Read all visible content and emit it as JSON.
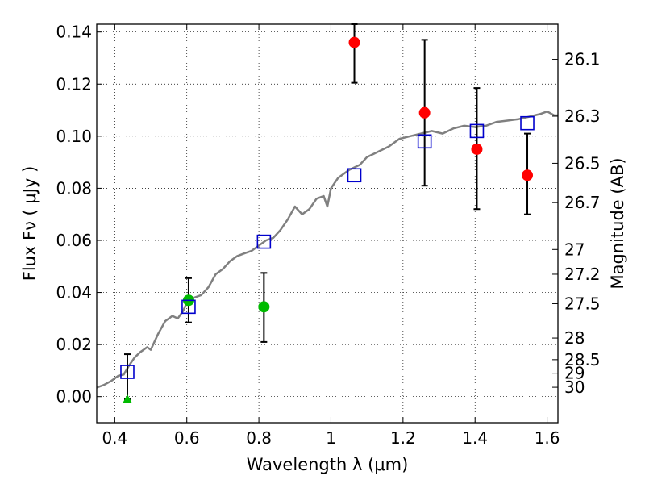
{
  "chart_data": {
    "type": "scatter",
    "xlabel": "Wavelength  λ (μm)",
    "ylabel": "Flux  Fν  ( μJy )",
    "ylabel_right": "Magnitude (AB)",
    "xlim": [
      0.35,
      1.63
    ],
    "ylim": [
      -0.01,
      0.143
    ],
    "grid": true,
    "x_ticks": [
      0.4,
      0.6,
      0.8,
      1.0,
      1.2,
      1.4,
      1.6
    ],
    "x_tick_labels": [
      "0.4",
      "0.6",
      "0.8",
      "1",
      "1.2",
      "1.4",
      "1.6"
    ],
    "y_ticks": [
      0.0,
      0.02,
      0.04,
      0.06,
      0.08,
      0.1,
      0.12,
      0.14
    ],
    "y_tick_labels": [
      "0.00",
      "0.02",
      "0.04",
      "0.06",
      "0.08",
      "0.10",
      "0.12",
      "0.14"
    ],
    "right_ticks": [
      {
        "label": "26.1",
        "flux": 0.1295
      },
      {
        "label": "26.3",
        "flux": 0.1077
      },
      {
        "label": "26.5",
        "flux": 0.0896
      },
      {
        "label": "26.7",
        "flux": 0.0745
      },
      {
        "label": "27",
        "flux": 0.0565
      },
      {
        "label": "27.2",
        "flux": 0.047
      },
      {
        "label": "27.5",
        "flux": 0.0357
      },
      {
        "label": "28",
        "flux": 0.0225
      },
      {
        "label": "28.5",
        "flux": 0.0142
      },
      {
        "label": "29",
        "flux": 0.009
      },
      {
        "label": "30",
        "flux": 0.0036
      }
    ],
    "series": [
      {
        "marker": "circle",
        "color": "#ff0000",
        "points": [
          {
            "x": 1.065,
            "y": 0.136,
            "err_low": 0.1205,
            "err_high": 0.143
          },
          {
            "x": 1.26,
            "y": 0.109,
            "err_low": 0.081,
            "err_high": 0.137
          },
          {
            "x": 1.405,
            "y": 0.095,
            "err_low": 0.072,
            "err_high": 0.1185
          },
          {
            "x": 1.545,
            "y": 0.085,
            "err_low": 0.07,
            "err_high": 0.101
          }
        ]
      },
      {
        "marker": "circle",
        "color": "#00bb00",
        "points": [
          {
            "x": 0.605,
            "y": 0.037,
            "err_low": 0.0285,
            "err_high": 0.0455
          },
          {
            "x": 0.814,
            "y": 0.0345,
            "err_low": 0.021,
            "err_high": 0.0475
          }
        ]
      },
      {
        "marker": "triangle",
        "color": "#00bb00",
        "points": [
          {
            "x": 0.435,
            "y": -0.001,
            "err_low": -0.001,
            "err_high": 0.0163
          }
        ]
      },
      {
        "marker": "open-square",
        "color": "#0000cc",
        "points": [
          {
            "x": 0.435,
            "y": 0.0095
          },
          {
            "x": 0.605,
            "y": 0.0345
          },
          {
            "x": 0.814,
            "y": 0.0595
          },
          {
            "x": 1.065,
            "y": 0.085
          },
          {
            "x": 1.26,
            "y": 0.098
          },
          {
            "x": 1.405,
            "y": 0.102
          },
          {
            "x": 1.545,
            "y": 0.105
          }
        ]
      },
      {
        "marker": "line",
        "color": "#808080",
        "points": [
          [
            0.35,
            0.0035
          ],
          [
            0.37,
            0.0045
          ],
          [
            0.39,
            0.006
          ],
          [
            0.41,
            0.008
          ],
          [
            0.425,
            0.0085
          ],
          [
            0.44,
            0.012
          ],
          [
            0.455,
            0.015
          ],
          [
            0.47,
            0.017
          ],
          [
            0.49,
            0.019
          ],
          [
            0.5,
            0.018
          ],
          [
            0.52,
            0.024
          ],
          [
            0.54,
            0.029
          ],
          [
            0.56,
            0.031
          ],
          [
            0.575,
            0.03
          ],
          [
            0.59,
            0.033
          ],
          [
            0.6,
            0.036
          ],
          [
            0.62,
            0.038
          ],
          [
            0.64,
            0.039
          ],
          [
            0.66,
            0.042
          ],
          [
            0.68,
            0.047
          ],
          [
            0.7,
            0.049
          ],
          [
            0.72,
            0.052
          ],
          [
            0.74,
            0.054
          ],
          [
            0.76,
            0.055
          ],
          [
            0.78,
            0.056
          ],
          [
            0.8,
            0.058
          ],
          [
            0.82,
            0.06
          ],
          [
            0.84,
            0.061
          ],
          [
            0.86,
            0.064
          ],
          [
            0.88,
            0.068
          ],
          [
            0.9,
            0.073
          ],
          [
            0.92,
            0.07
          ],
          [
            0.94,
            0.072
          ],
          [
            0.96,
            0.076
          ],
          [
            0.98,
            0.077
          ],
          [
            0.99,
            0.073
          ],
          [
            1.0,
            0.08
          ],
          [
            1.02,
            0.084
          ],
          [
            1.05,
            0.087
          ],
          [
            1.08,
            0.089
          ],
          [
            1.1,
            0.092
          ],
          [
            1.13,
            0.094
          ],
          [
            1.16,
            0.096
          ],
          [
            1.19,
            0.099
          ],
          [
            1.22,
            0.1
          ],
          [
            1.25,
            0.101
          ],
          [
            1.28,
            0.102
          ],
          [
            1.31,
            0.101
          ],
          [
            1.34,
            0.103
          ],
          [
            1.37,
            0.104
          ],
          [
            1.4,
            0.1035
          ],
          [
            1.43,
            0.104
          ],
          [
            1.46,
            0.1055
          ],
          [
            1.49,
            0.106
          ],
          [
            1.52,
            0.1065
          ],
          [
            1.55,
            0.1075
          ],
          [
            1.58,
            0.1085
          ],
          [
            1.6,
            0.1095
          ],
          [
            1.62,
            0.108
          ],
          [
            1.63,
            0.108
          ]
        ]
      }
    ]
  }
}
